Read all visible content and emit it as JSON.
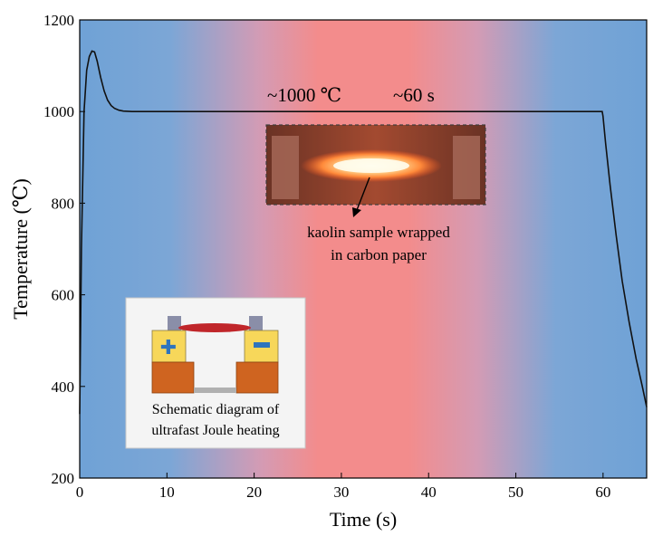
{
  "chart_data": {
    "type": "line",
    "xlabel": "Time (s)",
    "ylabel": "Temperature (℃)",
    "xlim": [
      0,
      65
    ],
    "ylim": [
      200,
      1200
    ],
    "x_ticks": [
      0,
      10,
      20,
      30,
      40,
      50,
      60
    ],
    "y_ticks": [
      200,
      400,
      600,
      800,
      1000,
      1200
    ],
    "grid": false,
    "background": "horizontal gradient blue-pink-red-pink-blue",
    "series": [
      {
        "color": "#111111",
        "x": [
          0,
          0.2,
          0.5,
          0.8,
          1.1,
          1.4,
          1.7,
          2.0,
          2.4,
          2.8,
          3.2,
          3.6,
          4.0,
          4.5,
          5.0,
          6.0,
          7.0,
          8.0,
          10,
          15,
          20,
          25,
          30,
          35,
          40,
          45,
          50,
          55,
          59.9,
          60.0,
          60.3,
          60.8,
          61.5,
          62.2,
          63.0,
          63.8,
          64.5,
          65
        ],
        "y": [
          340,
          700,
          1000,
          1090,
          1120,
          1132,
          1130,
          1110,
          1075,
          1045,
          1025,
          1013,
          1007,
          1003,
          1001,
          1000,
          1000,
          1000,
          1000,
          1000,
          1000,
          1000,
          1000,
          1000,
          1000,
          1000,
          1000,
          1000,
          1000,
          990,
          930,
          840,
          730,
          630,
          540,
          460,
          400,
          355
        ]
      }
    ]
  },
  "annotations": {
    "temperature": "~1000 ℃",
    "duration": "~60 s"
  },
  "photo_inset": {
    "caption_line1": "kaolin sample wrapped",
    "caption_line2": "in carbon paper"
  },
  "schematic_inset": {
    "caption_line1": "Schematic diagram of",
    "caption_line2": "ultrafast Joule heating",
    "plus_symbol": "✚",
    "minus_symbol": "━"
  },
  "colors": {
    "edge_blue": "#6fa2d6",
    "center_red": "#f38c8c",
    "line": "#111111",
    "electrode_yellow": "#f7d75a",
    "base_orange": "#cf6420",
    "sign_blue": "#2e74bd"
  }
}
